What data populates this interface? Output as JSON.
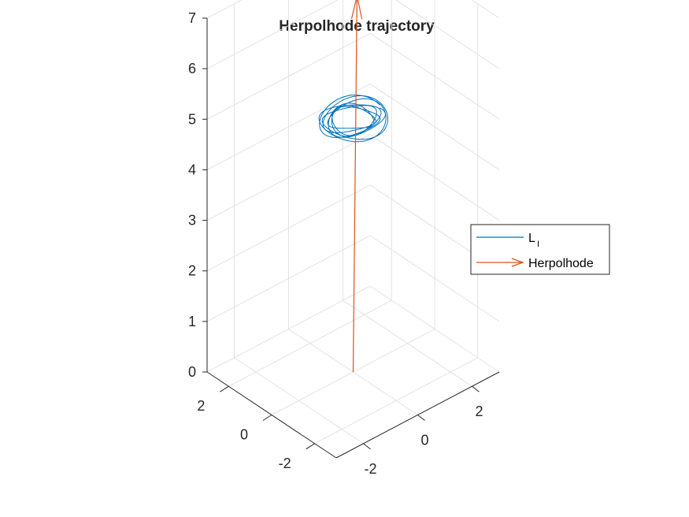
{
  "chart_data": {
    "type": "line3d",
    "title": "Herpolhode trajectory",
    "xlim": [
      -3,
      3
    ],
    "ylim": [
      -3,
      3
    ],
    "zlim": [
      0,
      7
    ],
    "x_ticks": [
      "-2",
      "0",
      "2"
    ],
    "y_ticks": [
      "-2",
      "0",
      "2"
    ],
    "z_ticks": [
      "0",
      "1",
      "2",
      "3",
      "4",
      "5",
      "6",
      "7"
    ],
    "grid": true,
    "legend_position": "right",
    "colors": {
      "L": "#0072bd",
      "herpolhode": "#d95319"
    },
    "series": [
      {
        "name": "L",
        "name_subscript": "I",
        "kind": "loop",
        "center": [
          0,
          0,
          5.0
        ],
        "radius_range": [
          0.6,
          1.0
        ],
        "loops": 8
      },
      {
        "name": "Herpolhode",
        "kind": "arrow",
        "start": [
          0,
          0,
          0
        ],
        "end": [
          0.3,
          0.2,
          7.3
        ]
      }
    ]
  }
}
